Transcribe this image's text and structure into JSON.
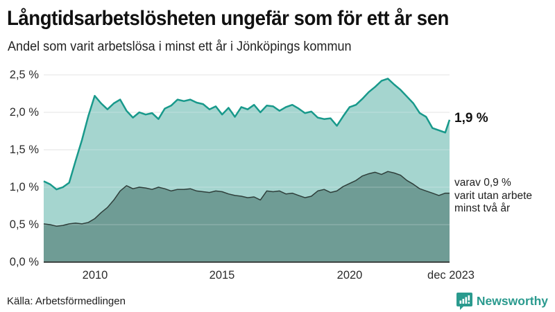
{
  "header": {
    "title": "Långtidsarbetslösheten ungefär som för ett år sen",
    "subtitle": "Andel som varit arbetslösa i minst ett år i Jönköpings kommun"
  },
  "annotations": {
    "end_value": "1,9 %",
    "secondary": "varav 0,9 %\nvarit utan arbete\nminst två år"
  },
  "footer": {
    "source": "Källa: Arbetsförmedlingen",
    "brand": "Newsworthy",
    "brand_icon": "bar-chart-speech-bubble",
    "brand_color": "#2a9a8e"
  },
  "colors": {
    "title_text": "#111111",
    "body_text": "#222222",
    "gridline": "#d9d9d9",
    "axis_line": "#3c4240",
    "long_term_line": "#18998b",
    "long_term_fill": "#a5d5cf",
    "two_year_line": "#2e3e3a",
    "two_year_fill": "#6f9c95"
  },
  "chart_data": {
    "type": "area",
    "title": "Långtidsarbetslösheten ungefär som för ett år sen",
    "subtitle": "Andel som varit arbetslösa i minst ett år i Jönköpings kommun",
    "unit": "%",
    "grid": true,
    "legend_position": "right-annotations",
    "x_range": [
      2008.0,
      2023.92
    ],
    "y_range": [
      0,
      2.5
    ],
    "y_tick_values": [
      2.5,
      2.0,
      1.5,
      1.0,
      0.5,
      0.0
    ],
    "y_tick_labels": [
      "2,5 %",
      "2,0 %",
      "1,5 %",
      "1,0 %",
      "0,5 %",
      "0,0 %"
    ],
    "x_tick_years": [
      2010,
      2015,
      2020,
      2023.92
    ],
    "x_tick_labels": [
      "2010",
      "2015",
      "2020",
      "dec 2023"
    ],
    "x": [
      2008.0,
      2008.25,
      2008.5,
      2008.75,
      2009.0,
      2009.25,
      2009.5,
      2009.75,
      2010.0,
      2010.25,
      2010.5,
      2010.75,
      2011.0,
      2011.25,
      2011.5,
      2011.75,
      2012.0,
      2012.25,
      2012.5,
      2012.75,
      2013.0,
      2013.25,
      2013.5,
      2013.75,
      2014.0,
      2014.25,
      2014.5,
      2014.75,
      2015.0,
      2015.25,
      2015.5,
      2015.75,
      2016.0,
      2016.25,
      2016.5,
      2016.75,
      2017.0,
      2017.25,
      2017.5,
      2017.75,
      2018.0,
      2018.25,
      2018.5,
      2018.75,
      2019.0,
      2019.25,
      2019.5,
      2019.75,
      2020.0,
      2020.25,
      2020.5,
      2020.75,
      2021.0,
      2021.25,
      2021.5,
      2021.75,
      2022.0,
      2022.25,
      2022.5,
      2022.75,
      2023.0,
      2023.25,
      2023.5,
      2023.75,
      2023.92
    ],
    "series": [
      {
        "name": "Arbetslösa minst ett år",
        "end_label": "1,9 %",
        "end_value": 1.9,
        "color": "#18998b",
        "fill": "#a5d5cf",
        "stroke_width": 2.5,
        "values": [
          1.08,
          1.04,
          0.97,
          1.0,
          1.06,
          1.35,
          1.63,
          1.95,
          2.22,
          2.12,
          2.04,
          2.12,
          2.17,
          2.02,
          1.93,
          2.0,
          1.97,
          1.99,
          1.91,
          2.05,
          2.09,
          2.17,
          2.15,
          2.17,
          2.13,
          2.11,
          2.04,
          2.08,
          1.97,
          2.06,
          1.94,
          2.07,
          2.04,
          2.1,
          2.0,
          2.09,
          2.08,
          2.02,
          2.07,
          2.1,
          2.05,
          1.99,
          2.01,
          1.93,
          1.91,
          1.92,
          1.82,
          1.95,
          2.07,
          2.1,
          2.18,
          2.27,
          2.34,
          2.42,
          2.45,
          2.37,
          2.3,
          2.21,
          2.12,
          1.99,
          1.94,
          1.79,
          1.76,
          1.73,
          1.9
        ]
      },
      {
        "name": "Utan arbete minst två år",
        "end_label": "0,9 %",
        "end_value": 0.9,
        "color": "#2e3e3a",
        "fill": "#6f9c95",
        "stroke_width": 1.5,
        "values": [
          0.51,
          0.5,
          0.48,
          0.49,
          0.51,
          0.52,
          0.51,
          0.53,
          0.58,
          0.66,
          0.73,
          0.83,
          0.95,
          1.02,
          0.98,
          1.0,
          0.99,
          0.97,
          1.0,
          0.98,
          0.95,
          0.97,
          0.97,
          0.98,
          0.95,
          0.94,
          0.93,
          0.95,
          0.94,
          0.91,
          0.89,
          0.88,
          0.86,
          0.87,
          0.83,
          0.95,
          0.94,
          0.95,
          0.91,
          0.92,
          0.89,
          0.86,
          0.88,
          0.95,
          0.97,
          0.93,
          0.95,
          1.01,
          1.05,
          1.09,
          1.15,
          1.18,
          1.2,
          1.17,
          1.21,
          1.19,
          1.16,
          1.09,
          1.04,
          0.98,
          0.95,
          0.92,
          0.89,
          0.92,
          0.92
        ]
      }
    ]
  }
}
